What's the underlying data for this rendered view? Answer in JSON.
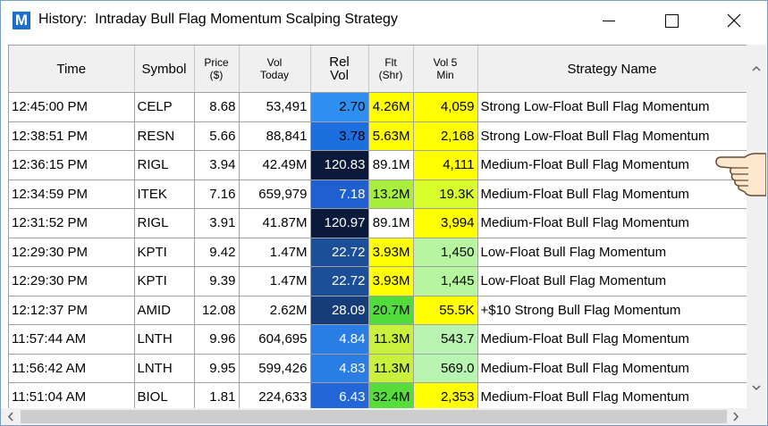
{
  "window": {
    "icon": "M",
    "title": "History:  Intraday Bull Flag Momentum Scalping Strategy"
  },
  "table": {
    "headers": [
      "Time",
      "Symbol",
      "Price\n($)",
      "Vol\nToday",
      "Rel\nVol",
      "Flt\n(Shr)",
      "Vol 5\nMin",
      "Strategy Name"
    ],
    "rows": [
      [
        "12:45:00 PM",
        "CELP",
        "8.68",
        "53,491",
        "2.70",
        "4.26M",
        "4,059",
        "Strong Low-Float Bull Flag Momentum"
      ],
      [
        "12:38:51 PM",
        "RESN",
        "5.66",
        "88,841",
        "3.78",
        "5.63M",
        "2,168",
        "Strong Low-Float Bull Flag Momentum"
      ],
      [
        "12:36:15 PM",
        "RIGL",
        "3.94",
        "42.49M",
        "120.83",
        "89.1M",
        "4,111",
        "Medium-Float Bull Flag Momentum"
      ],
      [
        "12:34:59 PM",
        "ITEK",
        "7.16",
        "659,979",
        "7.18",
        "13.2M",
        "19.3K",
        "Medium-Float Bull Flag Momentum"
      ],
      [
        "12:31:52 PM",
        "RIGL",
        "3.91",
        "41.87M",
        "120.97",
        "89.1M",
        "3,994",
        "Medium-Float Bull Flag Momentum"
      ],
      [
        "12:29:30 PM",
        "KPTI",
        "9.42",
        "1.47M",
        "22.72",
        "3.93M",
        "1,450",
        "Low-Float Bull Flag Momentum"
      ],
      [
        "12:29:30 PM",
        "KPTI",
        "9.39",
        "1.47M",
        "22.72",
        "3.93M",
        "1,445",
        "Low-Float Bull Flag Momentum"
      ],
      [
        "12:12:37 PM",
        "AMID",
        "12.08",
        "2.62M",
        "28.09",
        "20.7M",
        "55.5K",
        "+$10 Strong Bull Flag Momentum"
      ],
      [
        "11:57:44 AM",
        "LNTH",
        "9.96",
        "604,695",
        "4.84",
        "11.3M",
        "543.7",
        "Medium-Float Bull Flag Momentum"
      ],
      [
        "11:56:42 AM",
        "LNTH",
        "9.95",
        "599,426",
        "4.83",
        "11.3M",
        "569.0",
        "Medium-Float Bull Flag Momentum"
      ],
      [
        "11:51:04 AM",
        "BIOL",
        "1.81",
        "224,633",
        "6.43",
        "32.4M",
        "2,353",
        "Medium-Float Bull Flag Momentum"
      ]
    ]
  }
}
